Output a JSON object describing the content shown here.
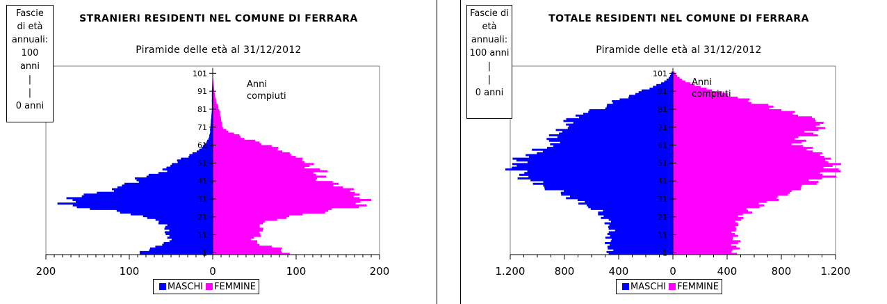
{
  "colors": {
    "male": "#0000ff",
    "female": "#ff00ff"
  },
  "charts": [
    {
      "title": "STRANIERI RESIDENTI NEL COMUNE DI FERRARA",
      "subtitle": "Piramide delle età al 31/12/2012",
      "agebox": [
        "Fascie",
        "di età",
        "annuali:",
        "100",
        "anni",
        "|",
        "|",
        "0 anni"
      ],
      "annotation": [
        "Anni",
        "compiuti"
      ],
      "legend": {
        "male": "MASCHI",
        "female": "FEMMINE"
      },
      "x_tick_labels": [
        "200",
        "100",
        "0",
        "100",
        "200"
      ],
      "y_tick_labels": [
        "1",
        "11",
        "21",
        "31",
        "41",
        "51",
        "61",
        "71",
        "81",
        "91",
        "101"
      ]
    },
    {
      "title": "TOTALE RESIDENTI NEL COMUNE DI FERRARA",
      "subtitle": "Piramide delle età al 31/12/2012",
      "agebox": [
        "Fascie di",
        "età",
        "annuali:",
        "100 anni",
        "|",
        "|",
        "0 anni"
      ],
      "annotation": [
        "Anni",
        "compiuti"
      ],
      "legend": {
        "male": "MASCHI",
        "female": "FEMMINE"
      },
      "x_tick_labels": [
        "1.200",
        "800",
        "400",
        "0",
        "400",
        "800",
        "1.200"
      ],
      "y_tick_labels": [
        "1",
        "11",
        "21",
        "31",
        "41",
        "51",
        "61",
        "71",
        "81",
        "91",
        "101"
      ]
    }
  ],
  "chart_data": [
    {
      "type": "bar",
      "orientation": "horizontal-pyramid",
      "title": "STRANIERI RESIDENTI NEL COMUNE DI FERRARA",
      "subtitle": "Piramide delle età al 31/12/2012",
      "xlim": [
        -200,
        200
      ],
      "ylim": [
        0,
        105
      ],
      "y_ticks": [
        1,
        11,
        21,
        31,
        41,
        51,
        61,
        71,
        81,
        91,
        101
      ],
      "x_ticks": [
        -200,
        -100,
        0,
        100,
        200
      ],
      "legend_position": "bottom",
      "grid": false,
      "age_points": [
        0,
        2,
        4,
        6,
        8,
        10,
        12,
        14,
        16,
        18,
        20,
        22,
        24,
        26,
        28,
        30,
        32,
        34,
        36,
        38,
        40,
        42,
        44,
        46,
        48,
        50,
        52,
        54,
        56,
        58,
        60,
        62,
        64,
        66,
        68,
        70,
        75,
        80,
        85,
        90,
        100
      ],
      "series": [
        {
          "name": "MASCHI",
          "values": [
            85,
            82,
            68,
            55,
            52,
            53,
            56,
            57,
            55,
            68,
            75,
            95,
            125,
            160,
            178,
            172,
            160,
            140,
            115,
            110,
            95,
            88,
            75,
            58,
            55,
            48,
            42,
            30,
            25,
            15,
            12,
            8,
            5,
            4,
            3,
            3,
            2,
            1,
            1,
            1,
            0
          ]
        },
        {
          "name": "FEMMINE",
          "values": [
            88,
            85,
            70,
            52,
            48,
            55,
            58,
            60,
            55,
            65,
            85,
            110,
            140,
            168,
            182,
            180,
            175,
            170,
            165,
            150,
            140,
            125,
            128,
            130,
            118,
            115,
            110,
            100,
            90,
            80,
            70,
            55,
            40,
            30,
            20,
            12,
            10,
            8,
            4,
            2,
            0
          ]
        }
      ]
    },
    {
      "type": "bar",
      "orientation": "horizontal-pyramid",
      "title": "TOTALE RESIDENTI NEL COMUNE DI FERRARA",
      "subtitle": "Piramide delle età al 31/12/2012",
      "xlim": [
        -1200,
        1200
      ],
      "ylim": [
        0,
        105
      ],
      "y_ticks": [
        1,
        11,
        21,
        31,
        41,
        51,
        61,
        71,
        81,
        91,
        101
      ],
      "x_ticks": [
        -1200,
        -800,
        -400,
        0,
        400,
        800,
        1200
      ],
      "legend_position": "bottom",
      "grid": false,
      "age_points": [
        0,
        3,
        6,
        9,
        12,
        15,
        18,
        21,
        24,
        27,
        30,
        33,
        36,
        39,
        42,
        45,
        48,
        51,
        54,
        57,
        60,
        63,
        66,
        69,
        72,
        75,
        78,
        81,
        84,
        87,
        90,
        93,
        96,
        99,
        102
      ],
      "series": [
        {
          "name": "MASCHI",
          "values": [
            460,
            480,
            470,
            480,
            460,
            470,
            480,
            520,
            560,
            640,
            720,
            800,
            900,
            1000,
            1080,
            1120,
            1180,
            1150,
            1100,
            1000,
            900,
            880,
            900,
            800,
            780,
            760,
            680,
            520,
            460,
            350,
            250,
            150,
            60,
            20,
            5
          ]
        },
        {
          "name": "FEMMINE",
          "values": [
            450,
            460,
            470,
            460,
            450,
            470,
            480,
            510,
            560,
            640,
            740,
            830,
            920,
            1020,
            1100,
            1160,
            1190,
            1170,
            1120,
            1050,
            950,
            920,
            1000,
            1060,
            1100,
            1050,
            900,
            760,
            620,
            480,
            350,
            200,
            90,
            30,
            5
          ]
        }
      ]
    }
  ]
}
